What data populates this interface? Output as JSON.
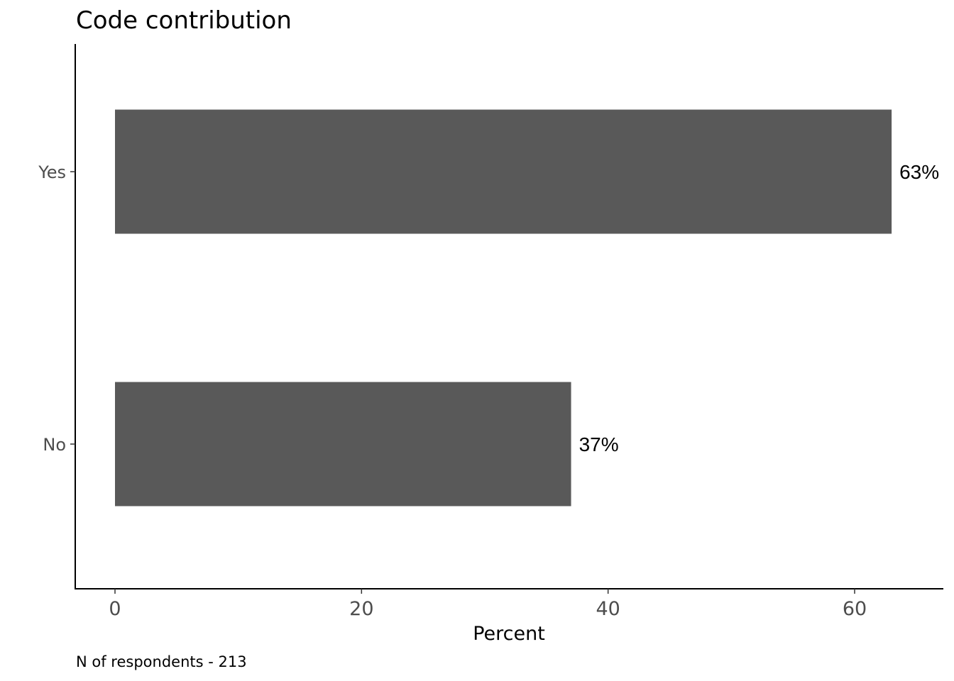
{
  "chart_data": {
    "type": "bar",
    "orientation": "horizontal",
    "title": "Code contribution",
    "categories": [
      "Yes",
      "No"
    ],
    "values": [
      63,
      37
    ],
    "value_labels": [
      "63%",
      "37%"
    ],
    "xlabel": "Percent",
    "ylabel": "",
    "xlim": [
      0,
      67
    ],
    "xticks": [
      0,
      20,
      40,
      60
    ],
    "xtick_labels": [
      "0",
      "20",
      "40",
      "60"
    ],
    "grid": false,
    "bar_color": "#595959",
    "caption": "N of respondents - 213"
  }
}
